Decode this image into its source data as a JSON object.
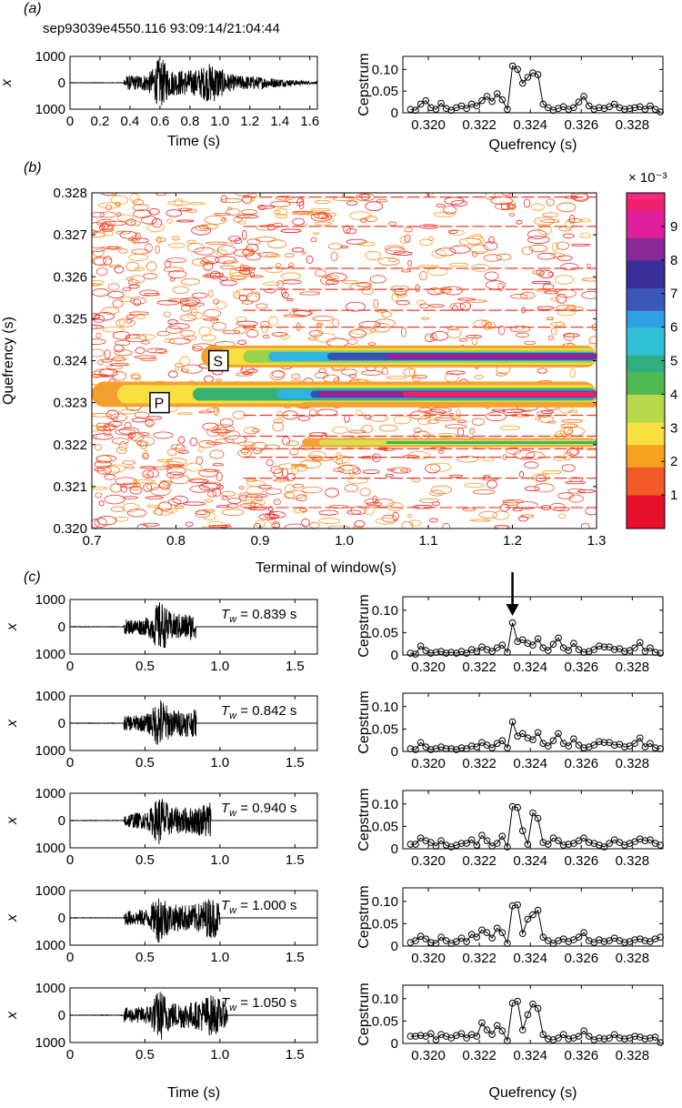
{
  "panels": {
    "a": {
      "label": "(a)"
    },
    "b": {
      "label": "(b)"
    },
    "c": {
      "label": "(c)"
    }
  },
  "event_id": "sep93039e4550.116 93:09:14/21:04:44",
  "chart_data": [
    {
      "type": "line",
      "name": "panel-a-waveform",
      "xlabel": "Time (s)",
      "ylabel": "x",
      "xlim": [
        0,
        1.65
      ],
      "ylim": [
        -1000,
        1000
      ],
      "xticks": [
        "0",
        "0.2",
        "0.4",
        "0.6",
        "0.8",
        "1.0",
        "1.2",
        "1.4",
        "1.6"
      ],
      "yticks": [
        "1000",
        "0",
        "1000"
      ],
      "onset": 0.36,
      "end": 1.65
    },
    {
      "type": "line",
      "name": "panel-a-cepstrum",
      "xlabel": "Quefrency (s)",
      "ylabel": "Cepstrum",
      "xlim": [
        0.319,
        0.3292
      ],
      "ylim": [
        0,
        0.13
      ],
      "xticks": [
        "0.320",
        "0.322",
        "0.324",
        "0.326",
        "0.328"
      ],
      "yticks": [
        "0",
        "0.05",
        "0.10"
      ],
      "x_start": 0.3193,
      "x_step": 0.0002,
      "values": [
        0.008,
        0.006,
        0.02,
        0.028,
        0.012,
        0.008,
        0.022,
        0.01,
        0.006,
        0.012,
        0.016,
        0.01,
        0.02,
        0.016,
        0.028,
        0.038,
        0.026,
        0.044,
        0.03,
        0.008,
        0.108,
        0.1,
        0.068,
        0.082,
        0.092,
        0.088,
        0.02,
        0.012,
        0.006,
        0.01,
        0.014,
        0.008,
        0.012,
        0.025,
        0.038,
        0.016,
        0.008,
        0.012,
        0.01,
        0.014,
        0.02,
        0.012,
        0.008,
        0.01,
        0.012,
        0.014,
        0.008,
        0.016,
        0.008,
        0.002
      ]
    },
    {
      "type": "heatmap",
      "name": "panel-b-contour",
      "xlabel": "Terminal of window(s)",
      "ylabel": "Quefrency (s)",
      "xlim": [
        0.7,
        1.3
      ],
      "ylim": [
        0.32,
        0.328
      ],
      "xticks": [
        "0.7",
        "0.8",
        "0.9",
        "1.0",
        "1.1",
        "1.2",
        "1.3"
      ],
      "yticks": [
        "0.320",
        "0.321",
        "0.322",
        "0.323",
        "0.324",
        "0.325",
        "0.326",
        "0.327",
        "0.328"
      ],
      "colorbar_ticks": [
        "1",
        "2",
        "3",
        "4",
        "5",
        "6",
        "7",
        "8",
        "9"
      ],
      "colorbar_scale": "× 10⁻³",
      "colorbar_range": [
        0,
        0.01
      ],
      "annotations": [
        {
          "text": "P",
          "x": 0.78,
          "y": 0.323
        },
        {
          "text": "S",
          "x": 0.85,
          "y": 0.324
        }
      ]
    },
    {
      "type": "line",
      "name": "panel-c-rows",
      "xlabel": "Time (s)",
      "xlabel_right": "Quefrency (s)",
      "ylabel": "x",
      "ylabel_right": "Cepstrum",
      "xticks_left": [
        "0",
        "0.5",
        "1.0",
        "1.5"
      ],
      "xticks_right": [
        "0.320",
        "0.322",
        "0.324",
        "0.326",
        "0.328"
      ],
      "yticks_left": [
        "1000",
        "0",
        "1000"
      ],
      "yticks_right": [
        "0",
        "0.05",
        "0.10"
      ],
      "rows": [
        {
          "tw_label": "= 0.839 s",
          "tw": 0.839,
          "arrow": true,
          "values": [
            0.004,
            0.002,
            0.02,
            0.01,
            0.004,
            0.006,
            0.008,
            0.004,
            0.006,
            0.004,
            0.008,
            0.004,
            0.012,
            0.008,
            0.018,
            0.012,
            0.008,
            0.016,
            0.022,
            0.006,
            0.072,
            0.03,
            0.034,
            0.026,
            0.022,
            0.036,
            0.016,
            0.01,
            0.024,
            0.038,
            0.016,
            0.01,
            0.026,
            0.012,
            0.006,
            0.008,
            0.012,
            0.02,
            0.018,
            0.018,
            0.012,
            0.014,
            0.008,
            0.01,
            0.016,
            0.028,
            0.008,
            0.016,
            0.006,
            0.004
          ]
        },
        {
          "tw_label": "= 0.842 s",
          "tw": 0.842,
          "arrow": false,
          "values": [
            0.006,
            0.004,
            0.02,
            0.01,
            0.004,
            0.006,
            0.01,
            0.006,
            0.006,
            0.004,
            0.008,
            0.006,
            0.012,
            0.01,
            0.02,
            0.014,
            0.008,
            0.018,
            0.024,
            0.008,
            0.066,
            0.034,
            0.04,
            0.03,
            0.026,
            0.042,
            0.018,
            0.012,
            0.024,
            0.04,
            0.018,
            0.012,
            0.028,
            0.014,
            0.008,
            0.01,
            0.014,
            0.022,
            0.02,
            0.02,
            0.014,
            0.016,
            0.01,
            0.012,
            0.018,
            0.03,
            0.01,
            0.018,
            0.008,
            0.006
          ]
        },
        {
          "tw_label": "= 0.940 s",
          "tw": 0.94,
          "arrow": false,
          "values": [
            0.01,
            0.01,
            0.024,
            0.018,
            0.014,
            0.006,
            0.018,
            0.008,
            0.004,
            0.008,
            0.012,
            0.012,
            0.02,
            0.008,
            0.03,
            0.018,
            0.006,
            0.012,
            0.028,
            0.004,
            0.094,
            0.092,
            0.04,
            0.01,
            0.08,
            0.068,
            0.014,
            0.01,
            0.024,
            0.018,
            0.008,
            0.01,
            0.012,
            0.018,
            0.024,
            0.014,
            0.012,
            0.008,
            0.004,
            0.012,
            0.02,
            0.014,
            0.008,
            0.012,
            0.016,
            0.022,
            0.018,
            0.02,
            0.012,
            0.008
          ]
        },
        {
          "tw_label": "= 1.000 s",
          "tw": 1.0,
          "arrow": false,
          "values": [
            0.008,
            0.012,
            0.022,
            0.016,
            0.008,
            0.006,
            0.02,
            0.012,
            0.006,
            0.01,
            0.018,
            0.01,
            0.026,
            0.02,
            0.036,
            0.03,
            0.018,
            0.04,
            0.03,
            0.006,
            0.09,
            0.092,
            0.028,
            0.06,
            0.07,
            0.08,
            0.02,
            0.012,
            0.006,
            0.012,
            0.016,
            0.01,
            0.014,
            0.02,
            0.03,
            0.012,
            0.008,
            0.014,
            0.01,
            0.012,
            0.018,
            0.012,
            0.008,
            0.01,
            0.014,
            0.016,
            0.012,
            0.01,
            0.016,
            0.02
          ]
        },
        {
          "tw_label": "= 1.050 s",
          "tw": 1.05,
          "arrow": false,
          "values": [
            0.016,
            0.016,
            0.018,
            0.016,
            0.022,
            0.008,
            0.02,
            0.016,
            0.012,
            0.018,
            0.022,
            0.012,
            0.02,
            0.016,
            0.046,
            0.03,
            0.02,
            0.04,
            0.028,
            0.006,
            0.09,
            0.094,
            0.03,
            0.064,
            0.088,
            0.078,
            0.02,
            0.01,
            0.008,
            0.012,
            0.02,
            0.01,
            0.012,
            0.016,
            0.028,
            0.016,
            0.008,
            0.012,
            0.01,
            0.012,
            0.02,
            0.012,
            0.01,
            0.012,
            0.016,
            0.014,
            0.01,
            0.012,
            0.014,
            0.002
          ]
        }
      ]
    }
  ]
}
